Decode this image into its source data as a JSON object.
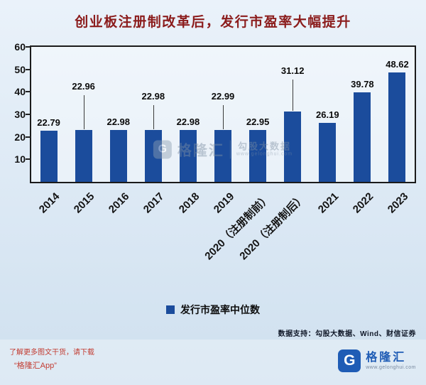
{
  "title": "创业板注册制改革后，发行市盈率大幅提升",
  "chart_data": {
    "type": "bar",
    "title": "创业板注册制改革后，发行市盈率大幅提升",
    "categories": [
      "2014",
      "2015",
      "2016",
      "2017",
      "2018",
      "2019",
      "2020（注册制前）",
      "2020（注册制后）",
      "2021",
      "2022",
      "2023"
    ],
    "values": [
      22.79,
      22.96,
      22.98,
      22.98,
      22.98,
      22.99,
      22.95,
      31.12,
      26.19,
      39.78,
      48.62
    ],
    "series_name": "发行市盈率中位数",
    "xlabel": "",
    "ylabel": "",
    "ylim": [
      0,
      60
    ],
    "yticks": [
      10,
      20,
      30,
      40,
      50,
      60
    ],
    "bar_color": "#1b4c9c",
    "grid": false,
    "legend_position": "bottom"
  },
  "legend": {
    "label": "发行市盈率中位数"
  },
  "watermark": {
    "brand": "格隆汇",
    "source": "勾股大数据",
    "url": "www.gelonghui.com",
    "logo_letter": "G"
  },
  "footer": {
    "data_support": "数据支持：勾股大数据、Wind、财信证券",
    "promo_line1": "了解更多图文干货，请下载",
    "promo_line2": "“格隆汇App”",
    "logo_letter": "G",
    "logo_text": "格隆汇",
    "logo_url": "www.gelonghui.com"
  },
  "colors": {
    "bar": "#1b4c9c",
    "title": "#8b1c1c",
    "promo": "#c23b31",
    "logo": "#1f5cb5"
  }
}
